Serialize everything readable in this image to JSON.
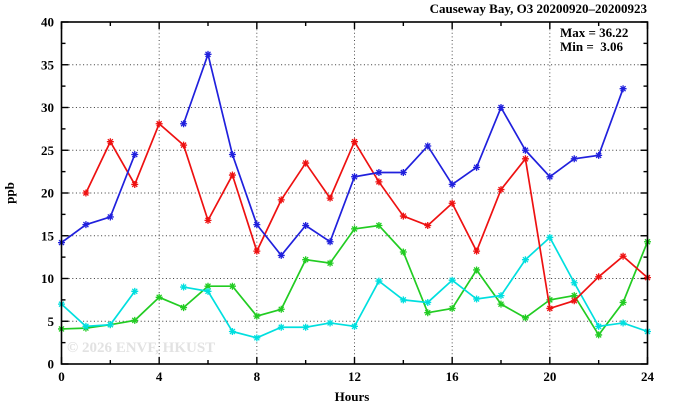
{
  "chart_data": {
    "type": "line",
    "title": "Causeway Bay, O3 20200920–20200923",
    "xlabel": "Hours",
    "ylabel": "ppb",
    "annotations": {
      "max_label": "Max = 36.22",
      "min_label": "Min =  3.06"
    },
    "watermark": "© 2026 ENVF, HKUST",
    "grid": true,
    "legend_position": "none",
    "x_axis": {
      "range": [
        0,
        24
      ],
      "ticks_major": [
        0,
        4,
        8,
        12,
        16,
        20,
        24
      ],
      "tick_labels": [
        "0",
        "4",
        "8",
        "12",
        "16",
        "20",
        "24"
      ],
      "minor_step": 2
    },
    "y_axis": {
      "range": [
        0,
        40
      ],
      "ticks_major": [
        0,
        5,
        10,
        15,
        20,
        25,
        30,
        35,
        40
      ],
      "tick_labels": [
        "0",
        "5",
        "10",
        "15",
        "20",
        "25",
        "30",
        "35",
        "40"
      ],
      "minor_step": 2.5
    },
    "x": [
      0,
      1,
      2,
      3,
      4,
      5,
      6,
      7,
      8,
      9,
      10,
      11,
      12,
      13,
      14,
      15,
      16,
      17,
      18,
      19,
      20,
      21,
      22,
      23,
      24
    ],
    "series": [
      {
        "name": "green",
        "color": "#22cc22",
        "values": [
          4.1,
          4.2,
          4.6,
          5.1,
          7.8,
          6.6,
          9.1,
          9.1,
          5.6,
          6.4,
          12.2,
          11.8,
          15.8,
          16.2,
          13.1,
          6.0,
          6.5,
          11.0,
          7.0,
          5.4,
          7.5,
          8.0,
          3.4,
          7.2,
          14.3
        ]
      },
      {
        "name": "cyan",
        "color": "#00dfdf",
        "values": [
          7.0,
          4.4,
          4.6,
          8.5,
          null,
          9.0,
          8.5,
          3.8,
          3.06,
          4.3,
          4.3,
          4.8,
          4.4,
          9.7,
          7.5,
          7.2,
          9.8,
          7.6,
          8.0,
          12.2,
          14.8,
          9.5,
          4.4,
          4.8,
          3.8
        ]
      },
      {
        "name": "red",
        "color": "#ee1111",
        "values": [
          null,
          20.0,
          26.0,
          21.0,
          28.1,
          25.6,
          16.8,
          22.1,
          13.2,
          19.2,
          23.5,
          19.4,
          26.0,
          21.3,
          17.3,
          16.2,
          18.8,
          13.2,
          20.4,
          24.0,
          6.5,
          7.4,
          10.2,
          12.6,
          10.1
        ]
      },
      {
        "name": "blue",
        "color": "#2020dd",
        "values": [
          14.2,
          16.3,
          17.2,
          24.5,
          null,
          28.1,
          36.22,
          24.5,
          16.3,
          12.7,
          16.2,
          14.3,
          21.9,
          22.4,
          22.4,
          25.5,
          21.0,
          23.0,
          30.0,
          25.0,
          21.9,
          24.0,
          24.4,
          32.2,
          null
        ]
      }
    ]
  }
}
